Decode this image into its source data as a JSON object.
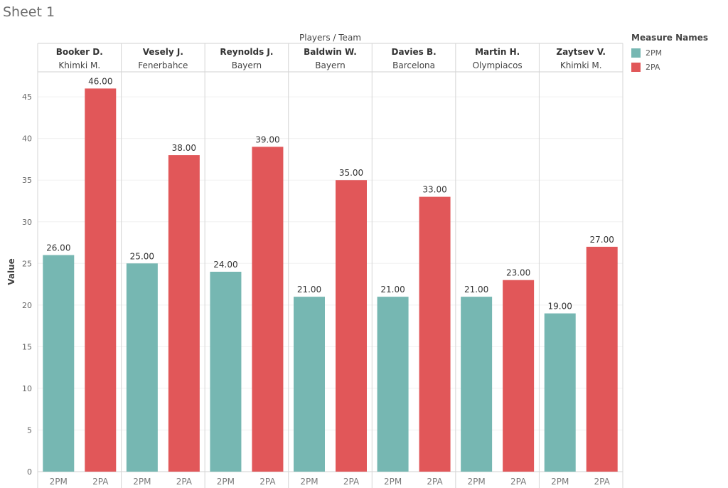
{
  "sheet": {
    "title": "Sheet 1"
  },
  "legend": {
    "title": "Measure Names",
    "items": [
      {
        "label": "2PM",
        "color": "#76b7b2"
      },
      {
        "label": "2PA",
        "color": "#e15759"
      }
    ]
  },
  "chart_data": {
    "type": "bar",
    "title": "",
    "header_label": "Players / Team",
    "ylabel": "Value",
    "xlabel": "",
    "ylim": [
      0,
      48
    ],
    "yticks": [
      0,
      5,
      10,
      15,
      20,
      25,
      30,
      35,
      40,
      45
    ],
    "grid": true,
    "legend_position": "right",
    "groups": [
      {
        "player": "Booker D.",
        "team": "Khimki M."
      },
      {
        "player": "Vesely J.",
        "team": "Fenerbahce"
      },
      {
        "player": "Reynolds J.",
        "team": "Bayern"
      },
      {
        "player": "Baldwin W.",
        "team": "Bayern"
      },
      {
        "player": "Davies B.",
        "team": "Barcelona"
      },
      {
        "player": "Martin H.",
        "team": "Olympiacos"
      },
      {
        "player": "Zaytsev V.",
        "team": "Khimki M."
      }
    ],
    "series": [
      {
        "name": "2PM",
        "color": "#76b7b2",
        "values": [
          26,
          25,
          24,
          21,
          21,
          21,
          19
        ],
        "labels": [
          "26.00",
          "25.00",
          "24.00",
          "21.00",
          "21.00",
          "21.00",
          "19.00"
        ]
      },
      {
        "name": "2PA",
        "color": "#e15759",
        "values": [
          46,
          38,
          39,
          35,
          33,
          23,
          27
        ],
        "labels": [
          "46.00",
          "38.00",
          "39.00",
          "35.00",
          "33.00",
          "23.00",
          "27.00"
        ]
      }
    ]
  }
}
